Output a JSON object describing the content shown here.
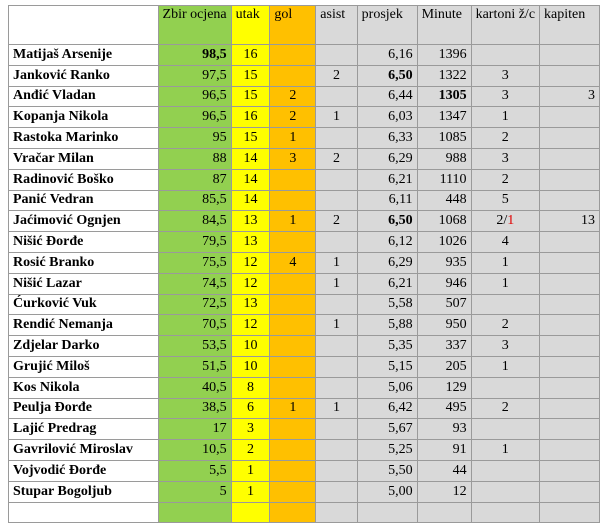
{
  "table": {
    "header": [
      null,
      "Zbir ocjena",
      "utak",
      "gol",
      "asist",
      "prosjek",
      "Minute",
      "kartoni ž/c",
      "kapiten"
    ],
    "column_colors": [
      "#ffffff",
      "#92d050",
      "#ffff00",
      "#ffc000",
      "#d9d9d9",
      "#d9d9d9",
      "#d9d9d9",
      "#d9d9d9",
      "#d9d9d9"
    ],
    "column_widths": [
      154,
      60,
      40,
      50,
      43,
      62,
      55,
      58,
      62
    ],
    "column_align": [
      "left",
      "right",
      "center",
      "center",
      "center",
      "right",
      "right",
      "center",
      "right"
    ],
    "bold": [
      [
        0,
        1
      ],
      [
        1,
        5
      ],
      [
        2,
        6
      ],
      [
        8,
        5
      ]
    ],
    "rows": [
      [
        "Matijaš Arsenije",
        "98,5",
        "16",
        null,
        null,
        "6,16",
        "1396",
        null,
        null
      ],
      [
        "Janković Ranko",
        "97,5",
        "15",
        null,
        "2",
        "6,50",
        "1322",
        "3",
        null
      ],
      [
        "Anđić Vladan",
        "96,5",
        "15",
        "2",
        null,
        "6,44",
        "1305",
        "3",
        "3"
      ],
      [
        "Kopanja Nikola",
        "96,5",
        "16",
        "2",
        "1",
        "6,03",
        "1347",
        "1",
        null
      ],
      [
        "Rastoka Marinko",
        "95",
        "15",
        "1",
        null,
        "6,33",
        "1085",
        "2",
        null
      ],
      [
        "Vračar Milan",
        "88",
        "14",
        "3",
        "2",
        "6,29",
        "988",
        "3",
        null
      ],
      [
        "Radinović Boško",
        "87",
        "14",
        null,
        null,
        "6,21",
        "1110",
        "2",
        null
      ],
      [
        "Panić Vedran",
        "85,5",
        "14",
        null,
        null,
        "6,11",
        "448",
        "5",
        null
      ],
      [
        "Jaćimović Ognjen",
        "84,5",
        "13",
        "1",
        "2",
        "6,50",
        "1068",
        [
          "2/",
          "1"
        ],
        "13"
      ],
      [
        "Nišić Đorđe",
        "79,5",
        "13",
        null,
        null,
        "6,12",
        "1026",
        "4",
        null
      ],
      [
        "Rosić Branko",
        "75,5",
        "12",
        "4",
        "1",
        "6,29",
        "935",
        "1",
        null
      ],
      [
        "Nišić Lazar",
        "74,5",
        "12",
        null,
        "1",
        "6,21",
        "946",
        "1",
        null
      ],
      [
        "Ćurković Vuk",
        "72,5",
        "13",
        null,
        null,
        "5,58",
        "507",
        null,
        null
      ],
      [
        "Rendić Nemanja",
        "70,5",
        "12",
        null,
        "1",
        "5,88",
        "950",
        "2",
        null
      ],
      [
        "Zdjelar Darko",
        "53,5",
        "10",
        null,
        null,
        "5,35",
        "337",
        "3",
        null
      ],
      [
        "Grujić Miloš",
        "51,5",
        "10",
        null,
        null,
        "5,15",
        "205",
        "1",
        null
      ],
      [
        "Kos Nikola",
        "40,5",
        "8",
        null,
        null,
        "5,06",
        "129",
        null,
        null
      ],
      [
        "Peulja Đorđe",
        "38,5",
        "6",
        "1",
        "1",
        "6,42",
        "495",
        "2",
        null
      ],
      [
        "Lajić Predrag",
        "17",
        "3",
        null,
        null,
        "5,67",
        "93",
        null,
        null
      ],
      [
        "Gavrilović Miroslav",
        "10,5",
        "2",
        null,
        null,
        "5,25",
        "91",
        "1",
        null
      ],
      [
        "Vojvodić Đorđe",
        "5,5",
        "1",
        null,
        null,
        "5,50",
        "44",
        null,
        null
      ],
      [
        "Stupar Bogoljub",
        "5",
        "1",
        null,
        null,
        "5,00",
        "12",
        null,
        null
      ]
    ]
  }
}
